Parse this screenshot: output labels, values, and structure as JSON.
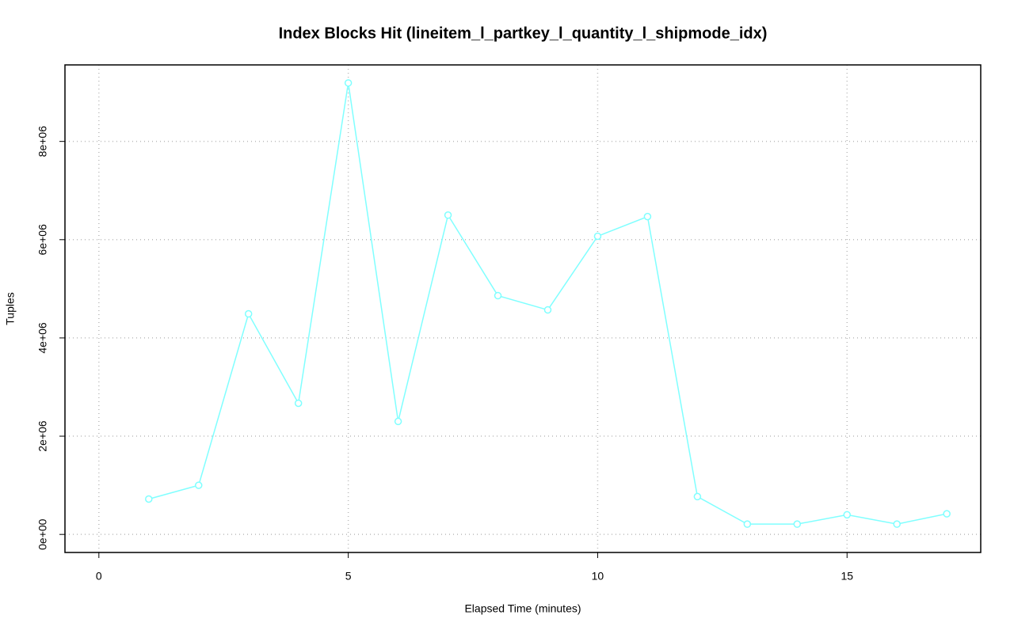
{
  "chart_data": {
    "type": "line",
    "title": "Index Blocks Hit (lineitem_l_partkey_l_quantity_l_shipmode_idx)",
    "x_label": "Elapsed Time (minutes)",
    "y_label": "Tuples",
    "x": [
      1,
      2,
      3,
      4,
      5,
      6,
      7,
      8,
      9,
      10,
      11,
      12,
      13,
      14,
      15,
      16,
      17
    ],
    "series": [
      {
        "name": "Index Blocks Hit",
        "color": "#80ffff",
        "values": [
          720000,
          1000000,
          4490000,
          2670000,
          9190000,
          2300000,
          6500000,
          4860000,
          4570000,
          6070000,
          6470000,
          770000,
          210000,
          210000,
          400000,
          210000,
          420000
        ]
      }
    ],
    "xlim": [
      -0.68,
      17.68
    ],
    "ylim": [
      -367600,
      9557600
    ],
    "xticks": [
      0,
      5,
      10,
      15
    ],
    "yticks": [
      {
        "value": 0,
        "label": "0e+00"
      },
      {
        "value": 2000000,
        "label": "2e+06"
      },
      {
        "value": 4000000,
        "label": "4e+06"
      },
      {
        "value": 6000000,
        "label": "6e+06"
      },
      {
        "value": 8000000,
        "label": "8e+06"
      }
    ],
    "grid": true
  }
}
